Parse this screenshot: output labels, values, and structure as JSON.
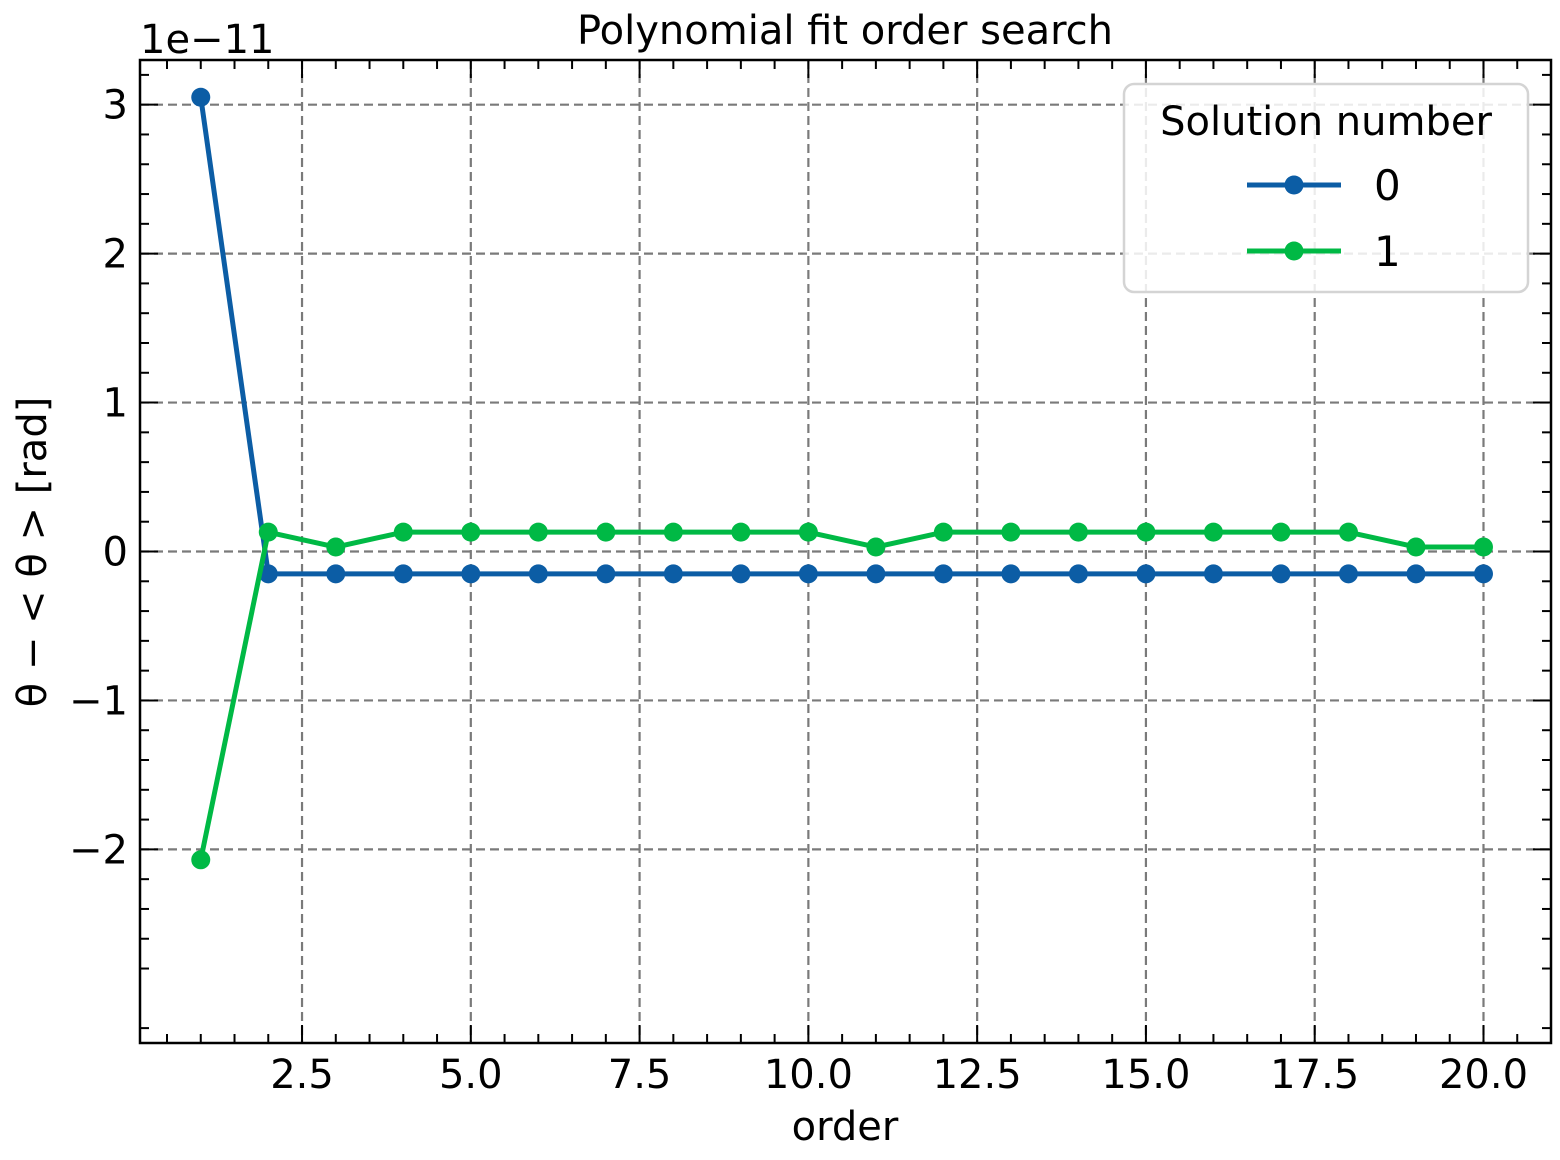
{
  "chart_data": {
    "type": "line",
    "title": "Polynomial fit order search",
    "xlabel": "order",
    "ylabel": "θ − < θ >  [rad]",
    "y_offset_text": "1e−11",
    "xlim": [
      0.1,
      21.0
    ],
    "ylim": [
      -3.3,
      3.3
    ],
    "y_scale_note": "values in units of 1e-11",
    "x_ticks": [
      2.5,
      5.0,
      7.5,
      10.0,
      12.5,
      15.0,
      17.5,
      20.0
    ],
    "x_tick_labels": [
      "2.5",
      "5.0",
      "7.5",
      "10.0",
      "12.5",
      "15.0",
      "17.5",
      "20.0"
    ],
    "y_ticks": [
      -2,
      -1,
      0,
      1,
      2,
      3
    ],
    "y_tick_labels": [
      "−2",
      "−1",
      "0",
      "1",
      "2",
      "3"
    ],
    "grid": true,
    "legend": {
      "title": "Solution number",
      "placement": "top-right"
    },
    "x": [
      1,
      2,
      3,
      4,
      5,
      6,
      7,
      8,
      9,
      10,
      11,
      12,
      13,
      14,
      15,
      16,
      17,
      18,
      19,
      20
    ],
    "series": [
      {
        "name": "0",
        "color": "#0c5da5",
        "values": [
          3.05,
          -0.15,
          -0.15,
          -0.15,
          -0.15,
          -0.15,
          -0.15,
          -0.15,
          -0.15,
          -0.15,
          -0.15,
          -0.15,
          -0.15,
          -0.15,
          -0.15,
          -0.15,
          -0.15,
          -0.15,
          -0.15,
          -0.15
        ]
      },
      {
        "name": "1",
        "color": "#00b945",
        "values": [
          -2.07,
          0.13,
          0.03,
          0.13,
          0.13,
          0.13,
          0.13,
          0.13,
          0.13,
          0.13,
          0.03,
          0.13,
          0.13,
          0.13,
          0.13,
          0.13,
          0.13,
          0.13,
          0.03,
          0.03
        ]
      }
    ]
  }
}
